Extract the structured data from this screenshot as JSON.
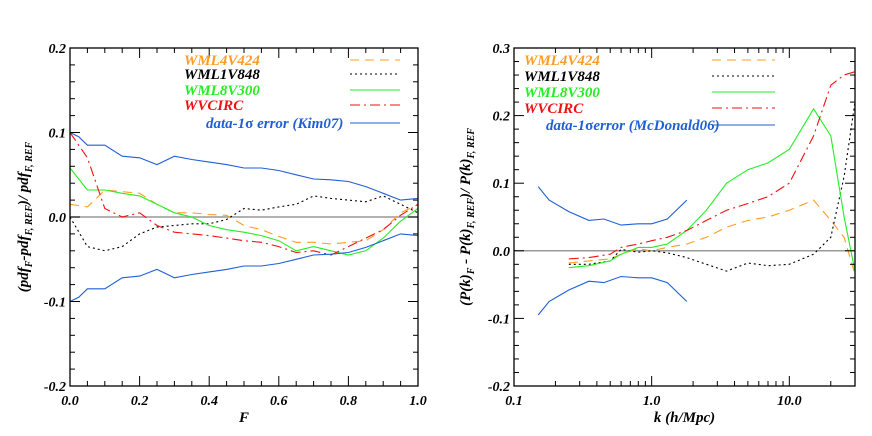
{
  "chart_data": [
    {
      "type": "line",
      "id": "left",
      "xlabel": "F",
      "ylabel": {
        "p1": "(pdf",
        "s1": "F",
        "p2": "-pdf",
        "s2": "F, REF",
        "p3": ")/ pdf",
        "s3": "F, REF"
      },
      "xlim": [
        0,
        1
      ],
      "ylim": [
        -0.2,
        0.2
      ],
      "xticks": [
        0.0,
        0.2,
        0.4,
        0.6,
        0.8,
        1.0
      ],
      "xtick_labels": [
        "0.0",
        "0.2",
        "0.4",
        "0.6",
        "0.8",
        "1.0"
      ],
      "yticks": [
        -0.2,
        -0.1,
        0.0,
        0.1,
        0.2
      ],
      "ytick_labels": [
        "-0.2",
        "-0.1",
        "0.0",
        "0.1",
        "0.2"
      ],
      "reference_line": 0.0,
      "series": [
        {
          "name": "WML4V424",
          "color": "#ff9c22",
          "dash": "9,6",
          "x": [
            0.0,
            0.05,
            0.1,
            0.15,
            0.2,
            0.25,
            0.3,
            0.35,
            0.4,
            0.45,
            0.5,
            0.55,
            0.6,
            0.65,
            0.7,
            0.75,
            0.8,
            0.85,
            0.9,
            0.95,
            1.0
          ],
          "y": [
            0.015,
            0.012,
            0.032,
            0.03,
            0.028,
            0.015,
            0.005,
            0.005,
            0.003,
            0.002,
            -0.01,
            -0.015,
            -0.023,
            -0.03,
            -0.03,
            -0.032,
            -0.03,
            -0.028,
            -0.015,
            0.005,
            0.015
          ]
        },
        {
          "name": "WML1V848",
          "color": "#000000",
          "dash": "2,3",
          "x": [
            0.0,
            0.05,
            0.1,
            0.15,
            0.2,
            0.25,
            0.3,
            0.35,
            0.4,
            0.45,
            0.5,
            0.55,
            0.6,
            0.65,
            0.7,
            0.75,
            0.8,
            0.85,
            0.9,
            0.95,
            1.0
          ],
          "y": [
            0.0,
            -0.035,
            -0.04,
            -0.035,
            -0.02,
            -0.012,
            -0.01,
            -0.008,
            -0.008,
            -0.003,
            0.01,
            0.008,
            0.012,
            0.015,
            0.025,
            0.022,
            0.02,
            0.018,
            0.025,
            0.015,
            0.005
          ]
        },
        {
          "name": "WML8V300",
          "color": "#22ee22",
          "dash": "",
          "x": [
            0.0,
            0.05,
            0.1,
            0.15,
            0.2,
            0.25,
            0.3,
            0.35,
            0.4,
            0.45,
            0.5,
            0.55,
            0.6,
            0.65,
            0.7,
            0.75,
            0.8,
            0.85,
            0.9,
            0.95,
            1.0
          ],
          "y": [
            0.058,
            0.032,
            0.032,
            0.028,
            0.025,
            0.015,
            0.005,
            0.0,
            -0.01,
            -0.015,
            -0.018,
            -0.022,
            -0.028,
            -0.04,
            -0.035,
            -0.04,
            -0.045,
            -0.04,
            -0.025,
            -0.005,
            0.01
          ]
        },
        {
          "name": "WVCIRC",
          "color": "#ee1111",
          "dash": "10,4,2,4",
          "x": [
            0.0,
            0.05,
            0.1,
            0.15,
            0.2,
            0.25,
            0.3,
            0.35,
            0.4,
            0.45,
            0.5,
            0.55,
            0.6,
            0.65,
            0.7,
            0.75,
            0.8,
            0.85,
            0.9,
            0.95,
            1.0
          ],
          "y": [
            0.1,
            0.07,
            0.01,
            0.0,
            0.005,
            -0.01,
            -0.018,
            -0.02,
            -0.022,
            -0.025,
            -0.028,
            -0.03,
            -0.035,
            -0.042,
            -0.04,
            -0.045,
            -0.035,
            -0.025,
            -0.015,
            0.002,
            0.015
          ]
        },
        {
          "name": "data-1σ error (Kim07)",
          "color": "#1f5fd6",
          "dash": "",
          "band": true,
          "x": [
            0.0,
            0.025,
            0.05,
            0.1,
            0.15,
            0.2,
            0.25,
            0.3,
            0.35,
            0.4,
            0.45,
            0.5,
            0.55,
            0.6,
            0.65,
            0.7,
            0.75,
            0.8,
            0.85,
            0.9,
            0.95,
            1.0
          ],
          "y": [
            0.1,
            0.095,
            0.085,
            0.085,
            0.072,
            0.07,
            0.062,
            0.072,
            0.068,
            0.065,
            0.062,
            0.058,
            0.058,
            0.055,
            0.05,
            0.045,
            0.044,
            0.042,
            0.036,
            0.028,
            0.02,
            0.022
          ]
        }
      ],
      "legend_label_parts": {
        "data_prefix": "data-1",
        "sigma": "σ",
        "data_suffix": " error (Kim07)"
      }
    },
    {
      "type": "line",
      "id": "right",
      "xscale": "log",
      "xlabel": "k (h/Mpc)",
      "ylabel": {
        "p1": "(P(k)",
        "s1": "F",
        "p2": " - P(k)",
        "s2": "F, REF",
        "p3": ")/ P(k)",
        "s3": "F, REF"
      },
      "xlim": [
        0.1,
        30
      ],
      "ylim": [
        -0.2,
        0.3
      ],
      "xticks": [
        0.1,
        1.0,
        10.0
      ],
      "xtick_labels": [
        "0.1",
        "1.0",
        "10.0"
      ],
      "yticks": [
        -0.2,
        -0.1,
        0.0,
        0.1,
        0.2,
        0.3
      ],
      "ytick_labels": [
        "-0.2",
        "-0.1",
        "0.0",
        "0.1",
        "0.2",
        "0.3"
      ],
      "reference_line": 0.0,
      "series": [
        {
          "name": "WML4V424",
          "color": "#ff9c22",
          "dash": "9,6",
          "x": [
            0.25,
            0.35,
            0.5,
            0.6,
            0.8,
            1.0,
            1.3,
            1.8,
            2.5,
            3.5,
            5,
            7,
            10,
            15,
            20,
            25,
            30
          ],
          "y": [
            -0.018,
            -0.015,
            -0.012,
            -0.005,
            0.003,
            0.0,
            0.005,
            0.01,
            0.02,
            0.035,
            0.045,
            0.05,
            0.06,
            0.075,
            0.045,
            0.02,
            -0.035
          ]
        },
        {
          "name": "WML1V848",
          "color": "#000000",
          "dash": "2,3",
          "x": [
            0.25,
            0.35,
            0.5,
            0.6,
            0.8,
            1.0,
            1.3,
            1.8,
            2.5,
            3.5,
            5,
            7,
            10,
            15,
            20,
            25,
            30
          ],
          "y": [
            -0.02,
            -0.02,
            -0.015,
            0.002,
            -0.002,
            0.0,
            -0.003,
            -0.01,
            -0.02,
            -0.03,
            -0.018,
            -0.022,
            -0.02,
            -0.005,
            0.02,
            0.11,
            0.22
          ]
        },
        {
          "name": "WML8V300",
          "color": "#22ee22",
          "dash": "",
          "x": [
            0.25,
            0.35,
            0.5,
            0.6,
            0.8,
            1.0,
            1.3,
            1.8,
            2.5,
            3.5,
            5,
            7,
            10,
            15,
            20,
            25,
            30
          ],
          "y": [
            -0.025,
            -0.022,
            -0.015,
            -0.005,
            0.005,
            0.005,
            0.01,
            0.03,
            0.06,
            0.1,
            0.12,
            0.13,
            0.15,
            0.21,
            0.17,
            0.05,
            -0.03
          ]
        },
        {
          "name": "WVCIRC",
          "color": "#ee1111",
          "dash": "10,4,2,4",
          "x": [
            0.25,
            0.35,
            0.5,
            0.6,
            0.8,
            1.0,
            1.3,
            1.8,
            2.5,
            3.5,
            5,
            7,
            10,
            15,
            20,
            25,
            30
          ],
          "y": [
            -0.012,
            -0.01,
            -0.005,
            0.005,
            0.01,
            0.015,
            0.02,
            0.03,
            0.045,
            0.06,
            0.07,
            0.08,
            0.1,
            0.17,
            0.245,
            0.26,
            0.265
          ]
        },
        {
          "name": "data-1σerror (McDonald06)",
          "color": "#1f5fd6",
          "dash": "",
          "band": true,
          "x": [
            0.15,
            0.18,
            0.25,
            0.35,
            0.45,
            0.6,
            0.8,
            1.0,
            1.3,
            1.8
          ],
          "y": [
            0.095,
            0.075,
            0.058,
            0.045,
            0.047,
            0.038,
            0.04,
            0.04,
            0.047,
            0.075
          ]
        }
      ],
      "legend_label_parts": {
        "data_prefix": "data-1",
        "sigma": "σ",
        "data_suffix": "error (McDonald06)"
      }
    }
  ]
}
